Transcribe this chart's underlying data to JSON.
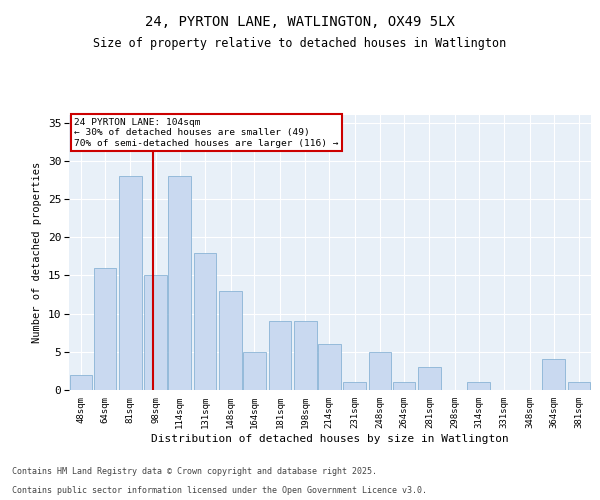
{
  "title1": "24, PYRTON LANE, WATLINGTON, OX49 5LX",
  "title2": "Size of property relative to detached houses in Watlington",
  "xlabel": "Distribution of detached houses by size in Watlington",
  "ylabel": "Number of detached properties",
  "bins": [
    48,
    64,
    81,
    98,
    114,
    131,
    148,
    164,
    181,
    198,
    214,
    231,
    248,
    264,
    281,
    298,
    314,
    331,
    348,
    364,
    381
  ],
  "values": [
    2,
    16,
    28,
    15,
    28,
    18,
    13,
    5,
    9,
    9,
    6,
    1,
    5,
    1,
    3,
    0,
    1,
    0,
    0,
    4,
    1
  ],
  "bar_color": "#c9d9f0",
  "bar_edge_color": "#7aaad0",
  "red_line_x": 104,
  "annotation_text": "24 PYRTON LANE: 104sqm\n← 30% of detached houses are smaller (49)\n70% of semi-detached houses are larger (116) →",
  "annotation_box_color": "#ffffff",
  "annotation_box_edge": "#cc0000",
  "annotation_text_color": "#000000",
  "red_line_color": "#cc0000",
  "ylim": [
    0,
    36
  ],
  "yticks": [
    0,
    5,
    10,
    15,
    20,
    25,
    30,
    35
  ],
  "background_color": "#e8f0f8",
  "grid_color": "#ffffff",
  "footer1": "Contains HM Land Registry data © Crown copyright and database right 2025.",
  "footer2": "Contains public sector information licensed under the Open Government Licence v3.0."
}
